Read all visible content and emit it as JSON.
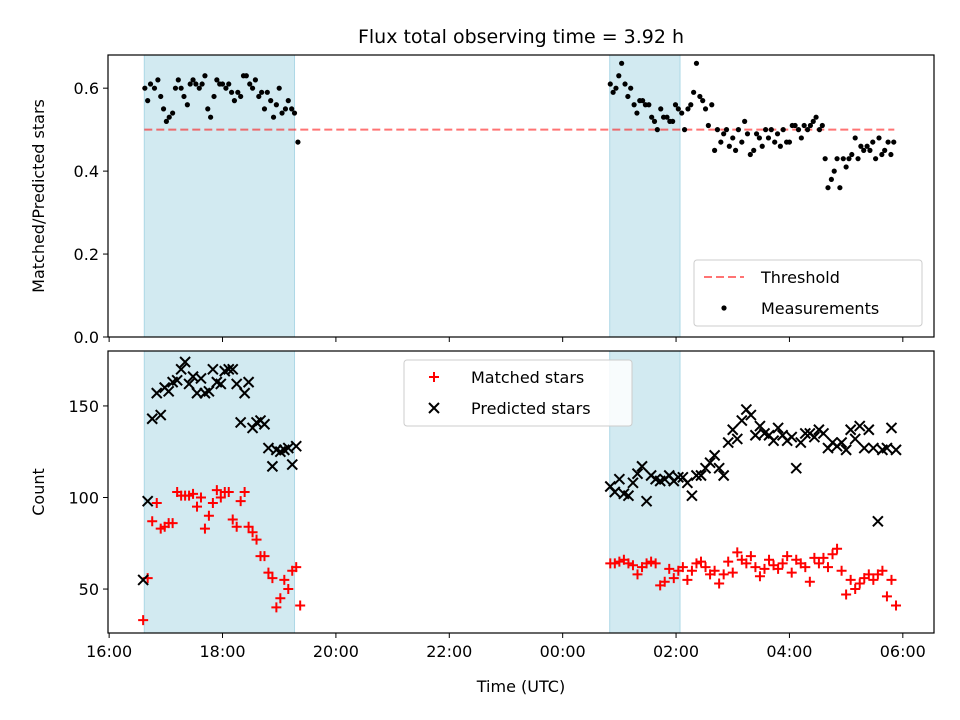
{
  "colors": {
    "shade": "#add8e6",
    "threshold": "#ff0000",
    "measurement": "#000000",
    "matched": "#ff0000",
    "predicted": "#000000"
  },
  "chart_data": [
    {
      "type": "scatter",
      "title": "Flux total observing time = 3.92 h",
      "ylabel": "Matched/Predicted stars",
      "xlabel": "",
      "ylim": [
        0.0,
        0.68
      ],
      "yticks": [
        0.0,
        0.2,
        0.4,
        0.6
      ],
      "ytick_labels": [
        "0.0",
        "0.2",
        "0.4",
        "0.6"
      ],
      "x_unit": "hours since 16:00 UTC",
      "xlim": [
        -0.02,
        14.55
      ],
      "xticks": [
        0,
        2,
        4,
        6,
        8,
        10,
        12,
        14
      ],
      "shaded_ranges": [
        [
          0.62,
          3.27
        ],
        [
          8.83,
          10.07
        ]
      ],
      "threshold": 0.5,
      "threshold_range": [
        0.62,
        13.85
      ],
      "legend_position": "lower right",
      "legend": [
        "Threshold",
        "Measurements"
      ],
      "series": [
        {
          "name": "Measurements",
          "marker": "dot",
          "x": [
            0.63,
            0.68,
            0.73,
            0.8,
            0.86,
            0.91,
            0.96,
            1.01,
            1.06,
            1.12,
            1.17,
            1.22,
            1.27,
            1.32,
            1.38,
            1.43,
            1.48,
            1.53,
            1.59,
            1.64,
            1.69,
            1.74,
            1.79,
            1.85,
            1.9,
            1.95,
            2.0,
            2.06,
            2.11,
            2.16,
            2.21,
            2.27,
            2.32,
            2.37,
            2.42,
            2.48,
            2.53,
            2.58,
            2.64,
            2.69,
            2.74,
            2.79,
            2.85,
            2.9,
            2.95,
            3.0,
            3.05,
            3.11,
            3.16,
            3.22,
            3.27,
            3.33,
            8.84,
            8.89,
            8.94,
            8.99,
            9.04,
            9.1,
            9.15,
            9.2,
            9.26,
            9.31,
            9.36,
            9.41,
            9.46,
            9.52,
            9.57,
            9.62,
            9.67,
            9.73,
            9.78,
            9.84,
            9.89,
            9.94,
            9.99,
            10.04,
            10.1,
            10.15,
            10.21,
            10.26,
            10.31,
            10.36,
            10.42,
            10.47,
            10.52,
            10.57,
            10.63,
            10.68,
            10.73,
            10.79,
            10.84,
            10.89,
            10.94,
            11.0,
            11.05,
            11.1,
            11.16,
            11.21,
            11.26,
            11.31,
            11.37,
            11.42,
            11.47,
            11.52,
            11.58,
            11.63,
            11.68,
            11.74,
            11.79,
            11.84,
            11.89,
            11.95,
            12.0,
            12.05,
            12.1,
            12.16,
            12.21,
            12.26,
            12.32,
            12.37,
            12.42,
            12.47,
            12.53,
            12.58,
            12.63,
            12.68,
            12.74,
            12.79,
            12.84,
            12.89,
            12.95,
            13.0,
            13.05,
            13.1,
            13.16,
            13.21,
            13.26,
            13.31,
            13.37,
            13.42,
            13.47,
            13.52,
            13.58,
            13.63,
            13.68,
            13.74,
            13.79,
            13.84
          ],
          "y": [
            0.6,
            0.57,
            0.61,
            0.6,
            0.62,
            0.58,
            0.55,
            0.52,
            0.53,
            0.54,
            0.6,
            0.62,
            0.6,
            0.58,
            0.56,
            0.61,
            0.62,
            0.61,
            0.6,
            0.61,
            0.63,
            0.55,
            0.53,
            0.58,
            0.62,
            0.61,
            0.61,
            0.6,
            0.61,
            0.59,
            0.57,
            0.59,
            0.58,
            0.63,
            0.63,
            0.61,
            0.6,
            0.62,
            0.58,
            0.59,
            0.55,
            0.59,
            0.57,
            0.53,
            0.56,
            0.6,
            0.54,
            0.55,
            0.57,
            0.55,
            0.54,
            0.47,
            0.61,
            0.59,
            0.6,
            0.63,
            0.66,
            0.61,
            0.58,
            0.6,
            0.56,
            0.54,
            0.57,
            0.57,
            0.56,
            0.56,
            0.53,
            0.52,
            0.5,
            0.55,
            0.53,
            0.53,
            0.52,
            0.52,
            0.56,
            0.55,
            0.54,
            0.5,
            0.55,
            0.56,
            0.59,
            0.66,
            0.58,
            0.57,
            0.55,
            0.51,
            0.56,
            0.45,
            0.5,
            0.47,
            0.49,
            0.5,
            0.46,
            0.48,
            0.45,
            0.5,
            0.47,
            0.52,
            0.49,
            0.44,
            0.45,
            0.49,
            0.48,
            0.46,
            0.5,
            0.48,
            0.5,
            0.47,
            0.49,
            0.46,
            0.5,
            0.47,
            0.47,
            0.51,
            0.51,
            0.5,
            0.48,
            0.51,
            0.5,
            0.51,
            0.52,
            0.53,
            0.5,
            0.51,
            0.43,
            0.36,
            0.38,
            0.4,
            0.43,
            0.36,
            0.43,
            0.41,
            0.43,
            0.44,
            0.48,
            0.43,
            0.46,
            0.45,
            0.46,
            0.45,
            0.47,
            0.43,
            0.48,
            0.44,
            0.45,
            0.47,
            0.44,
            0.47
          ]
        }
      ]
    },
    {
      "type": "scatter",
      "title": "",
      "ylabel": "Count",
      "xlabel": "Time (UTC)",
      "ylim": [
        26,
        180
      ],
      "yticks": [
        50,
        100,
        150
      ],
      "ytick_labels": [
        "50",
        "100",
        "150"
      ],
      "x_unit": "hours since 16:00 UTC",
      "xlim": [
        -0.02,
        14.55
      ],
      "xticks": [
        0,
        2,
        4,
        6,
        8,
        10,
        12,
        14
      ],
      "xtick_labels": [
        "16:00",
        "18:00",
        "20:00",
        "22:00",
        "00:00",
        "02:00",
        "04:00",
        "06:00"
      ],
      "shaded_ranges": [
        [
          0.62,
          3.27
        ],
        [
          8.83,
          10.07
        ]
      ],
      "legend_position": "upper center",
      "legend": [
        "Matched stars",
        "Predicted stars"
      ],
      "series": [
        {
          "name": "Matched stars",
          "marker": "plus",
          "x": [
            0.6,
            0.68,
            0.76,
            0.84,
            0.91,
            0.98,
            1.05,
            1.12,
            1.2,
            1.27,
            1.34,
            1.41,
            1.48,
            1.55,
            1.62,
            1.69,
            1.76,
            1.83,
            1.9,
            1.97,
            2.04,
            2.11,
            2.18,
            2.25,
            2.32,
            2.39,
            2.46,
            2.53,
            2.6,
            2.67,
            2.74,
            2.81,
            2.88,
            2.95,
            3.02,
            3.09,
            3.16,
            3.23,
            3.3,
            3.37,
            8.84,
            8.92,
            9.0,
            9.08,
            9.16,
            9.24,
            9.32,
            9.4,
            9.48,
            9.56,
            9.64,
            9.72,
            9.8,
            9.88,
            9.96,
            10.04,
            10.12,
            10.2,
            10.28,
            10.36,
            10.44,
            10.52,
            10.6,
            10.68,
            10.76,
            10.84,
            10.92,
            11.0,
            11.08,
            11.16,
            11.24,
            11.32,
            11.4,
            11.48,
            11.56,
            11.64,
            11.72,
            11.8,
            11.88,
            11.96,
            12.04,
            12.12,
            12.2,
            12.28,
            12.36,
            12.44,
            12.52,
            12.6,
            12.68,
            12.76,
            12.84,
            12.92,
            13.0,
            13.08,
            13.16,
            13.24,
            13.32,
            13.4,
            13.48,
            13.56,
            13.64,
            13.72,
            13.8,
            13.88
          ],
          "y": [
            33,
            56,
            87,
            97,
            83,
            84,
            86,
            86,
            103,
            101,
            101,
            101,
            102,
            95,
            100,
            83,
            90,
            97,
            104,
            100,
            103,
            103,
            88,
            84,
            98,
            103,
            84,
            81,
            77,
            68,
            68,
            59,
            56,
            40,
            45,
            55,
            50,
            60,
            62,
            41,
            64,
            64,
            65,
            66,
            64,
            63,
            58,
            62,
            64,
            65,
            64,
            52,
            54,
            61,
            56,
            60,
            62,
            55,
            60,
            64,
            65,
            62,
            58,
            60,
            53,
            58,
            65,
            59,
            70,
            66,
            64,
            68,
            62,
            57,
            61,
            66,
            63,
            61,
            64,
            68,
            59,
            66,
            64,
            62,
            54,
            67,
            64,
            67,
            62,
            69,
            72,
            60,
            47,
            55,
            50,
            53,
            56,
            58,
            55,
            58,
            60,
            46,
            55,
            41
          ]
        },
        {
          "name": "Predicted stars",
          "marker": "x",
          "x": [
            0.6,
            0.68,
            0.76,
            0.84,
            0.91,
            0.98,
            1.05,
            1.12,
            1.2,
            1.27,
            1.34,
            1.41,
            1.48,
            1.55,
            1.62,
            1.69,
            1.76,
            1.83,
            1.9,
            1.97,
            2.04,
            2.11,
            2.18,
            2.25,
            2.32,
            2.39,
            2.46,
            2.53,
            2.6,
            2.67,
            2.74,
            2.81,
            2.88,
            2.95,
            3.02,
            3.09,
            3.16,
            3.23,
            3.3,
            8.84,
            8.92,
            9.0,
            9.08,
            9.16,
            9.24,
            9.32,
            9.4,
            9.48,
            9.56,
            9.64,
            9.72,
            9.8,
            9.88,
            9.96,
            10.04,
            10.12,
            10.2,
            10.28,
            10.36,
            10.44,
            10.52,
            10.6,
            10.68,
            10.76,
            10.84,
            10.92,
            11.0,
            11.08,
            11.16,
            11.24,
            11.32,
            11.4,
            11.48,
            11.56,
            11.64,
            11.72,
            11.8,
            11.88,
            11.96,
            12.04,
            12.12,
            12.2,
            12.28,
            12.36,
            12.44,
            12.52,
            12.6,
            12.68,
            12.76,
            12.84,
            12.92,
            13.0,
            13.08,
            13.16,
            13.24,
            13.32,
            13.4,
            13.48,
            13.56,
            13.64,
            13.72,
            13.8,
            13.88
          ],
          "y": [
            55,
            98,
            143,
            157,
            145,
            160,
            158,
            163,
            164,
            170,
            174,
            162,
            166,
            157,
            165,
            157,
            158,
            170,
            163,
            162,
            169,
            170,
            170,
            162,
            141,
            157,
            163,
            138,
            141,
            142,
            140,
            127,
            117,
            126,
            125,
            126,
            127,
            118,
            128,
            106,
            103,
            110,
            102,
            101,
            108,
            113,
            117,
            98,
            112,
            110,
            109,
            110,
            112,
            109,
            111,
            111,
            108,
            101,
            112,
            112,
            116,
            119,
            123,
            116,
            112,
            130,
            137,
            132,
            142,
            148,
            145,
            134,
            139,
            135,
            134,
            131,
            138,
            134,
            131,
            133,
            116,
            130,
            135,
            135,
            133,
            137,
            135,
            127,
            130,
            128,
            130,
            126,
            137,
            132,
            139,
            127,
            137,
            127,
            87,
            126,
            127,
            138,
            126
          ]
        }
      ]
    }
  ]
}
